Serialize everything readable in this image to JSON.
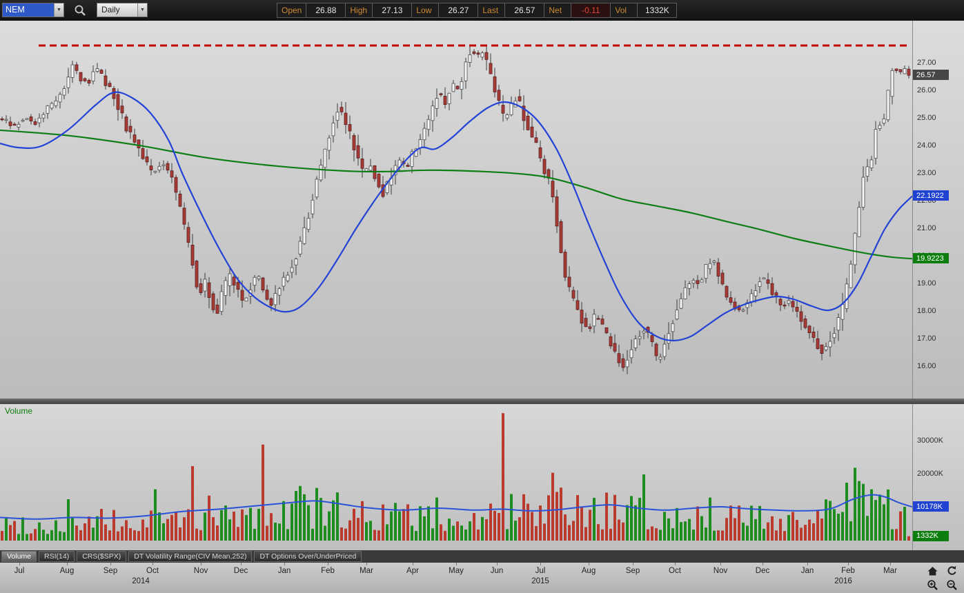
{
  "toolbar": {
    "symbol": "NEM",
    "timeframe": "Daily",
    "quote": {
      "open_label": "Open",
      "open": "26.88",
      "high_label": "High",
      "high": "27.13",
      "low_label": "Low",
      "low": "26.27",
      "last_label": "Last",
      "last": "26.57",
      "net_label": "Net",
      "net": "-0.11",
      "vol_label": "Vol",
      "vol": "1332K"
    }
  },
  "volume_pane": {
    "title": "Volume"
  },
  "tabs": {
    "items": [
      "Volume",
      "RSI(14)",
      "CRS($SPX)",
      "DT Volatility Range(CIV Mean,252)",
      "DT Options Over/UnderPriced"
    ],
    "active_index": 0
  },
  "time_axis": {
    "months": [
      [
        "Jul",
        0.021
      ],
      [
        "Aug",
        0.073
      ],
      [
        "Sep",
        0.121
      ],
      [
        "Oct",
        0.167
      ],
      [
        "Nov",
        0.22
      ],
      [
        "Dec",
        0.264
      ],
      [
        "Jan",
        0.312
      ],
      [
        "Feb",
        0.359
      ],
      [
        "Mar",
        0.402
      ],
      [
        "Apr",
        0.452
      ],
      [
        "May",
        0.5
      ],
      [
        "Jun",
        0.545
      ],
      [
        "Jul",
        0.592
      ],
      [
        "Aug",
        0.645
      ],
      [
        "Sep",
        0.694
      ],
      [
        "Oct",
        0.74
      ],
      [
        "Nov",
        0.79
      ],
      [
        "Dec",
        0.836
      ],
      [
        "Jan",
        0.885
      ],
      [
        "Feb",
        0.93
      ],
      [
        "Mar",
        0.976
      ]
    ],
    "years": [
      [
        "2014",
        0.154
      ],
      [
        "2015",
        0.592
      ],
      [
        "2016",
        0.924
      ]
    ]
  },
  "chart_data": [
    {
      "type": "candlestick",
      "symbol": "NEM",
      "timeframe": "Daily",
      "ylim": [
        14.85,
        28.55
      ],
      "y_ticks": [
        [
          "27.00",
          27
        ],
        [
          "26.00",
          26
        ],
        [
          "25.00",
          25
        ],
        [
          "24.00",
          24
        ],
        [
          "23.00",
          23
        ],
        [
          "22.00",
          22
        ],
        [
          "21.00",
          21
        ],
        [
          "20.00",
          20
        ],
        [
          "19.00",
          19
        ],
        [
          "18.00",
          18
        ],
        [
          "17.00",
          17
        ],
        [
          "16.00",
          16
        ]
      ],
      "tags": [
        {
          "label": "26.57",
          "value": 26.57,
          "bg": "#464646"
        },
        {
          "label": "22.1922",
          "value": 22.1922,
          "bg": "#2143d1"
        },
        {
          "label": "19.9223",
          "value": 19.9223,
          "bg": "#0d7d0d"
        }
      ],
      "resistance": {
        "level": 27.65,
        "color": "#c40000",
        "span": [
          0.042,
          0.996
        ]
      },
      "candle_colors": {
        "up": "#f6f6f6",
        "down": "#a93a36",
        "wick": "#3c3c3c",
        "up_border": "#4a4a4a",
        "down_border": "#571d1d"
      },
      "ma_colors": {
        "fast": "#2342d6",
        "slow": "#0c7e14"
      },
      "close_path": [
        [
          0.004,
          25.0
        ],
        [
          0.015,
          24.7
        ],
        [
          0.027,
          25.1
        ],
        [
          0.038,
          24.8
        ],
        [
          0.049,
          25.3
        ],
        [
          0.061,
          25.6
        ],
        [
          0.072,
          26.2
        ],
        [
          0.08,
          27.0
        ],
        [
          0.087,
          26.5
        ],
        [
          0.097,
          26.3
        ],
        [
          0.105,
          26.9
        ],
        [
          0.114,
          26.4
        ],
        [
          0.123,
          26.0
        ],
        [
          0.13,
          25.4
        ],
        [
          0.14,
          24.6
        ],
        [
          0.15,
          24.1
        ],
        [
          0.159,
          23.4
        ],
        [
          0.168,
          23.0
        ],
        [
          0.178,
          23.4
        ],
        [
          0.188,
          22.9
        ],
        [
          0.197,
          21.8
        ],
        [
          0.205,
          20.6
        ],
        [
          0.211,
          19.8
        ],
        [
          0.218,
          18.6
        ],
        [
          0.225,
          19.1
        ],
        [
          0.232,
          18.4
        ],
        [
          0.237,
          17.9
        ],
        [
          0.244,
          18.7
        ],
        [
          0.252,
          19.3
        ],
        [
          0.259,
          18.9
        ],
        [
          0.267,
          18.3
        ],
        [
          0.274,
          18.9
        ],
        [
          0.282,
          19.4
        ],
        [
          0.289,
          18.7
        ],
        [
          0.297,
          18.2
        ],
        [
          0.305,
          18.8
        ],
        [
          0.314,
          19.3
        ],
        [
          0.323,
          19.9
        ],
        [
          0.33,
          20.6
        ],
        [
          0.339,
          21.6
        ],
        [
          0.346,
          22.6
        ],
        [
          0.354,
          23.5
        ],
        [
          0.36,
          24.3
        ],
        [
          0.366,
          25.0
        ],
        [
          0.371,
          25.5
        ],
        [
          0.377,
          24.9
        ],
        [
          0.385,
          24.3
        ],
        [
          0.392,
          23.6
        ],
        [
          0.399,
          22.9
        ],
        [
          0.405,
          23.4
        ],
        [
          0.413,
          22.8
        ],
        [
          0.42,
          22.3
        ],
        [
          0.428,
          22.9
        ],
        [
          0.437,
          23.5
        ],
        [
          0.446,
          23.2
        ],
        [
          0.455,
          23.9
        ],
        [
          0.464,
          24.5
        ],
        [
          0.473,
          25.2
        ],
        [
          0.48,
          26.0
        ],
        [
          0.488,
          25.5
        ],
        [
          0.495,
          26.3
        ],
        [
          0.503,
          26.0
        ],
        [
          0.511,
          27.1
        ],
        [
          0.517,
          27.5
        ],
        [
          0.523,
          27.2
        ],
        [
          0.529,
          27.4
        ],
        [
          0.535,
          26.8
        ],
        [
          0.541,
          26.2
        ],
        [
          0.547,
          25.5
        ],
        [
          0.553,
          24.9
        ],
        [
          0.559,
          25.3
        ],
        [
          0.565,
          25.8
        ],
        [
          0.571,
          25.4
        ],
        [
          0.577,
          24.8
        ],
        [
          0.585,
          24.2
        ],
        [
          0.592,
          23.6
        ],
        [
          0.6,
          22.9
        ],
        [
          0.606,
          22.2
        ],
        [
          0.612,
          20.9
        ],
        [
          0.617,
          19.6
        ],
        [
          0.623,
          18.8
        ],
        [
          0.63,
          18.3
        ],
        [
          0.638,
          17.7
        ],
        [
          0.645,
          17.3
        ],
        [
          0.653,
          17.9
        ],
        [
          0.661,
          17.4
        ],
        [
          0.668,
          16.9
        ],
        [
          0.676,
          16.4
        ],
        [
          0.683,
          16.0
        ],
        [
          0.691,
          16.6
        ],
        [
          0.698,
          17.1
        ],
        [
          0.706,
          17.4
        ],
        [
          0.714,
          16.9
        ],
        [
          0.721,
          16.1
        ],
        [
          0.729,
          16.9
        ],
        [
          0.736,
          17.6
        ],
        [
          0.744,
          18.3
        ],
        [
          0.752,
          18.9
        ],
        [
          0.759,
          19.2
        ],
        [
          0.767,
          19.0
        ],
        [
          0.774,
          19.6
        ],
        [
          0.782,
          19.9
        ],
        [
          0.789,
          19.2
        ],
        [
          0.797,
          18.5
        ],
        [
          0.805,
          18.2
        ],
        [
          0.812,
          18.0
        ],
        [
          0.82,
          18.4
        ],
        [
          0.827,
          18.8
        ],
        [
          0.835,
          19.3
        ],
        [
          0.842,
          19.0
        ],
        [
          0.85,
          18.5
        ],
        [
          0.858,
          18.2
        ],
        [
          0.865,
          18.4
        ],
        [
          0.873,
          18.0
        ],
        [
          0.88,
          17.6
        ],
        [
          0.888,
          17.2
        ],
        [
          0.895,
          16.8
        ],
        [
          0.903,
          16.5
        ],
        [
          0.911,
          17.1
        ],
        [
          0.918,
          17.6
        ],
        [
          0.926,
          18.4
        ],
        [
          0.932,
          19.6
        ],
        [
          0.938,
          20.9
        ],
        [
          0.944,
          22.3
        ],
        [
          0.948,
          23.4
        ],
        [
          0.953,
          23.0
        ],
        [
          0.958,
          24.2
        ],
        [
          0.962,
          25.1
        ],
        [
          0.967,
          24.5
        ],
        [
          0.971,
          25.4
        ],
        [
          0.976,
          26.3
        ],
        [
          0.98,
          27.2
        ],
        [
          0.985,
          26.4
        ],
        [
          0.989,
          26.9
        ],
        [
          0.995,
          26.57
        ]
      ],
      "ma_fast": [
        [
          0,
          24.1
        ],
        [
          0.02,
          23.95
        ],
        [
          0.045,
          24.0
        ],
        [
          0.075,
          24.6
        ],
        [
          0.105,
          25.5
        ],
        [
          0.125,
          25.95
        ],
        [
          0.145,
          25.75
        ],
        [
          0.165,
          25.2
        ],
        [
          0.185,
          24.2
        ],
        [
          0.2,
          23.0
        ],
        [
          0.22,
          21.6
        ],
        [
          0.24,
          20.3
        ],
        [
          0.26,
          19.2
        ],
        [
          0.28,
          18.5
        ],
        [
          0.3,
          18.1
        ],
        [
          0.315,
          18.0
        ],
        [
          0.33,
          18.2
        ],
        [
          0.35,
          18.9
        ],
        [
          0.37,
          19.9
        ],
        [
          0.39,
          21.0
        ],
        [
          0.41,
          22.0
        ],
        [
          0.43,
          22.9
        ],
        [
          0.448,
          23.6
        ],
        [
          0.462,
          23.95
        ],
        [
          0.477,
          23.9
        ],
        [
          0.495,
          24.3
        ],
        [
          0.515,
          24.9
        ],
        [
          0.535,
          25.4
        ],
        [
          0.553,
          25.6
        ],
        [
          0.572,
          25.4
        ],
        [
          0.59,
          24.9
        ],
        [
          0.61,
          23.9
        ],
        [
          0.628,
          22.6
        ],
        [
          0.645,
          21.2
        ],
        [
          0.663,
          19.8
        ],
        [
          0.68,
          18.6
        ],
        [
          0.7,
          17.6
        ],
        [
          0.72,
          17.1
        ],
        [
          0.738,
          16.95
        ],
        [
          0.757,
          17.1
        ],
        [
          0.775,
          17.5
        ],
        [
          0.795,
          17.95
        ],
        [
          0.815,
          18.25
        ],
        [
          0.835,
          18.45
        ],
        [
          0.852,
          18.55
        ],
        [
          0.87,
          18.45
        ],
        [
          0.89,
          18.2
        ],
        [
          0.908,
          18.05
        ],
        [
          0.924,
          18.3
        ],
        [
          0.94,
          19.0
        ],
        [
          0.955,
          20.0
        ],
        [
          0.97,
          21.0
        ],
        [
          0.985,
          21.7
        ],
        [
          1,
          22.19
        ]
      ],
      "ma_slow": [
        [
          0,
          24.58
        ],
        [
          0.076,
          24.38
        ],
        [
          0.152,
          24.03
        ],
        [
          0.227,
          23.58
        ],
        [
          0.303,
          23.28
        ],
        [
          0.379,
          23.1
        ],
        [
          0.424,
          23.08
        ],
        [
          0.47,
          23.13
        ],
        [
          0.53,
          23.08
        ],
        [
          0.576,
          22.98
        ],
        [
          0.606,
          22.83
        ],
        [
          0.644,
          22.48
        ],
        [
          0.682,
          22.08
        ],
        [
          0.72,
          21.83
        ],
        [
          0.758,
          21.58
        ],
        [
          0.795,
          21.28
        ],
        [
          0.833,
          20.98
        ],
        [
          0.871,
          20.65
        ],
        [
          0.909,
          20.38
        ],
        [
          0.947,
          20.13
        ],
        [
          0.977,
          19.98
        ],
        [
          1,
          19.92
        ]
      ]
    },
    {
      "type": "bar",
      "title": "Volume",
      "unit": "K",
      "ylim": [
        0,
        40000
      ],
      "y_ticks": [
        [
          "30000K",
          30000
        ],
        [
          "20000K",
          20000
        ]
      ],
      "tags": [
        {
          "label": "10178K",
          "value": 10178,
          "bg": "#2143d1"
        },
        {
          "label": "1332K",
          "value": 1332,
          "bg": "#0d7d0d"
        }
      ],
      "bar_colors": {
        "up": "#1f8c1f",
        "down": "#bb3a2e"
      },
      "ma_color": "#2a52d8",
      "last_bar": 1332,
      "profile": [
        [
          0,
          6000
        ],
        [
          0.05,
          5500
        ],
        [
          0.1,
          6500
        ],
        [
          0.15,
          6000
        ],
        [
          0.2,
          8000
        ],
        [
          0.22,
          9000
        ],
        [
          0.26,
          8500
        ],
        [
          0.3,
          9000
        ],
        [
          0.33,
          10000
        ],
        [
          0.36,
          10500
        ],
        [
          0.4,
          9000
        ],
        [
          0.44,
          8000
        ],
        [
          0.48,
          8500
        ],
        [
          0.52,
          8000
        ],
        [
          0.55,
          9500
        ],
        [
          0.58,
          8500
        ],
        [
          0.62,
          10500
        ],
        [
          0.66,
          9500
        ],
        [
          0.7,
          8500
        ],
        [
          0.74,
          9000
        ],
        [
          0.78,
          8500
        ],
        [
          0.82,
          8000
        ],
        [
          0.86,
          8000
        ],
        [
          0.9,
          8500
        ],
        [
          0.93,
          12000
        ],
        [
          0.96,
          11000
        ],
        [
          0.99,
          9000
        ]
      ],
      "ma": [
        [
          0,
          7000
        ],
        [
          0.04,
          6500
        ],
        [
          0.08,
          7000
        ],
        [
          0.12,
          6800
        ],
        [
          0.16,
          7500
        ],
        [
          0.2,
          8800
        ],
        [
          0.24,
          9500
        ],
        [
          0.28,
          10500
        ],
        [
          0.32,
          11500
        ],
        [
          0.345,
          12000
        ],
        [
          0.37,
          11200
        ],
        [
          0.4,
          10000
        ],
        [
          0.44,
          9200
        ],
        [
          0.48,
          9800
        ],
        [
          0.52,
          9200
        ],
        [
          0.55,
          9500
        ],
        [
          0.58,
          9000
        ],
        [
          0.61,
          9300
        ],
        [
          0.64,
          10200
        ],
        [
          0.67,
          10800
        ],
        [
          0.7,
          9800
        ],
        [
          0.73,
          9200
        ],
        [
          0.76,
          9800
        ],
        [
          0.79,
          10200
        ],
        [
          0.82,
          9600
        ],
        [
          0.85,
          9200
        ],
        [
          0.88,
          9000
        ],
        [
          0.91,
          9600
        ],
        [
          0.935,
          12500
        ],
        [
          0.955,
          13800
        ],
        [
          0.97,
          13200
        ],
        [
          0.985,
          11500
        ],
        [
          1,
          10178
        ]
      ],
      "spikes": [
        [
          0.073,
          12500
        ],
        [
          0.168,
          15500
        ],
        [
          0.21,
          22500
        ],
        [
          0.287,
          29000
        ],
        [
          0.324,
          15000
        ],
        [
          0.33,
          16500
        ],
        [
          0.335,
          14000
        ],
        [
          0.553,
          38500
        ],
        [
          0.576,
          14000
        ],
        [
          0.604,
          20500
        ],
        [
          0.617,
          16000
        ],
        [
          0.664,
          14500
        ],
        [
          0.706,
          20000
        ],
        [
          0.78,
          13000
        ],
        [
          0.93,
          17500
        ],
        [
          0.938,
          22000
        ],
        [
          0.944,
          18000
        ],
        [
          0.955,
          15500
        ]
      ]
    }
  ]
}
